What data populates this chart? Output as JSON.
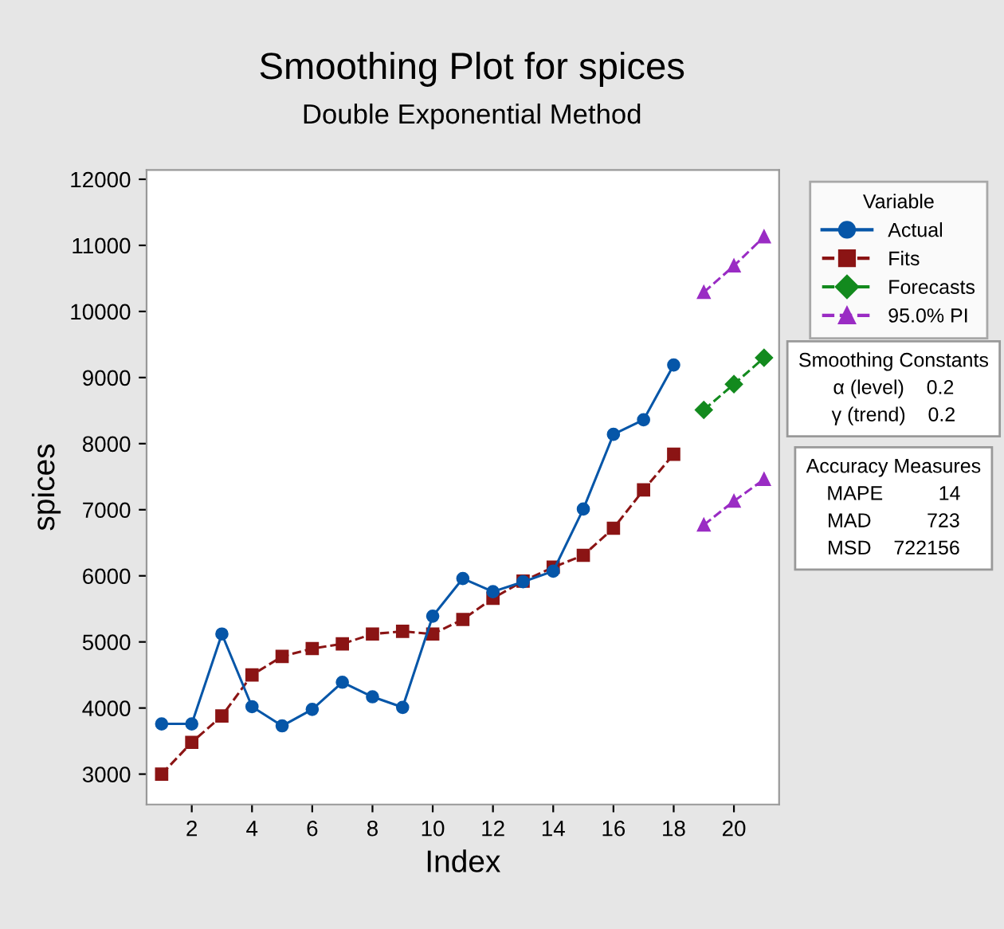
{
  "chart_data": {
    "type": "line",
    "title": "Smoothing Plot for spices",
    "subtitle": "Double Exponential Method",
    "xlabel": "Index",
    "ylabel": "spices",
    "legend_title": "Variable",
    "legend": "right",
    "grid": false,
    "xlim": [
      0.5,
      21.5
    ],
    "xticks": [
      2,
      4,
      6,
      8,
      10,
      12,
      14,
      16,
      18,
      20
    ],
    "ylim": [
      2540,
      12140
    ],
    "yticks": [
      3000,
      4000,
      5000,
      6000,
      7000,
      8000,
      9000,
      10000,
      11000,
      12000
    ],
    "series": [
      {
        "name": "Actual",
        "color": "#0656a8",
        "marker": "circle",
        "line_style": "solid",
        "x": [
          1,
          2,
          3,
          4,
          5,
          6,
          7,
          8,
          9,
          10,
          11,
          12,
          13,
          14,
          15,
          16,
          17,
          18
        ],
        "values": [
          3760,
          3760,
          5120,
          4020,
          3730,
          3980,
          4390,
          4170,
          4010,
          5390,
          5960,
          5760,
          5910,
          6070,
          7010,
          8140,
          8360,
          9190
        ]
      },
      {
        "name": "Fits",
        "color": "#8b1414",
        "marker": "square",
        "line_style": "dashed",
        "x": [
          1,
          2,
          3,
          4,
          5,
          6,
          7,
          8,
          9,
          10,
          11,
          12,
          13,
          14,
          15,
          16,
          17,
          18
        ],
        "values": [
          3000,
          3480,
          3880,
          4500,
          4780,
          4900,
          4970,
          5120,
          5160,
          5120,
          5340,
          5660,
          5920,
          6130,
          6310,
          6720,
          7300,
          7840
        ]
      },
      {
        "name": "Forecasts",
        "color": "#138a1e",
        "marker": "diamond",
        "line_style": "dashed",
        "x": [
          19,
          20,
          21
        ],
        "values": [
          8510,
          8900,
          9300
        ]
      },
      {
        "name": "95.0% PI",
        "color": "#9a2cc4",
        "marker": "triangle",
        "line_style": "dashed",
        "x": [
          19,
          20,
          21
        ],
        "values": [
          10290,
          10690,
          11130
        ]
      },
      {
        "color": "#9a2cc4",
        "marker": "triangle",
        "line_style": "dashed",
        "x": [
          19,
          20,
          21
        ],
        "values": [
          6770,
          7130,
          7460
        ]
      }
    ],
    "annotations": [
      "Smoothing Constants\nα (level)    0.2\nγ (trend)    0.2",
      "Accuracy Measures\nMAPE          14\nMAD          723\nMSD    722156"
    ]
  }
}
